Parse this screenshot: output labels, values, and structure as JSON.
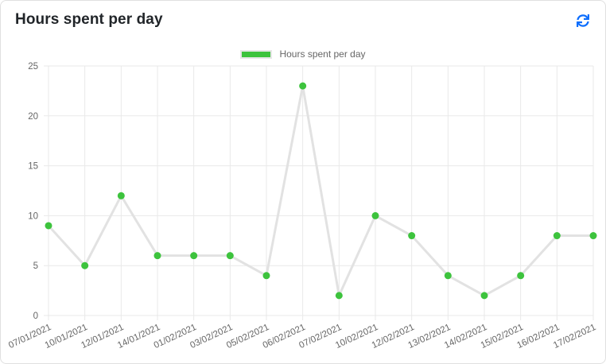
{
  "header": {
    "title": "Hours spent per day"
  },
  "legend": {
    "label": "Hours spent per day"
  },
  "colors": {
    "accent_green": "#3dc33d",
    "refresh_blue": "#0d6efd",
    "line_gray": "#e2e2e2",
    "grid_gray": "#e9e9e9",
    "tick_label_gray": "#666666",
    "title_dark": "#212529"
  },
  "chart_data": {
    "type": "line",
    "title": "Hours spent per day",
    "x": [
      "07/01/2021",
      "10/01/2021",
      "12/01/2021",
      "14/01/2021",
      "01/02/2021",
      "03/02/2021",
      "05/02/2021",
      "06/02/2021",
      "07/02/2021",
      "10/02/2021",
      "12/02/2021",
      "13/02/2021",
      "14/02/2021",
      "15/02/2021",
      "16/02/2021",
      "17/02/2021"
    ],
    "series": [
      {
        "name": "Hours spent per day",
        "values": [
          9,
          5,
          12,
          6,
          6,
          6,
          4,
          23,
          2,
          10,
          8,
          4,
          2,
          4,
          8,
          8
        ]
      }
    ],
    "xlabel": "",
    "ylabel": "",
    "ylim": [
      0,
      25
    ],
    "yticks": [
      0,
      5,
      10,
      15,
      20,
      25
    ],
    "grid": true,
    "legend_position": "top",
    "x_label_rotation": -25,
    "point_color": "#3dc33d",
    "line_color": "#e2e2e2",
    "grid_color": "#e9e9e9",
    "tick_label_color": "#666666"
  }
}
